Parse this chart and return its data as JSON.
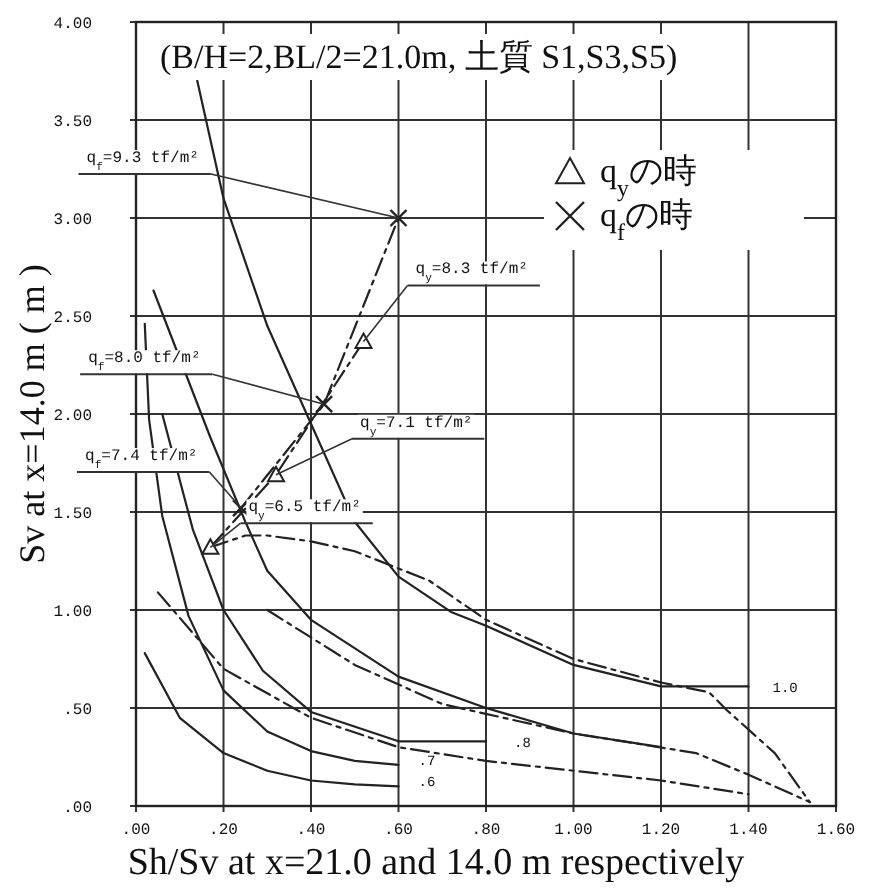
{
  "chart_data": {
    "type": "line",
    "title": "(B/H=2,BL/2=21.0m, 土質 S1,S3,S5)",
    "xlabel": "Sh/Sv at x=21.0 and 14.0 m respectively",
    "ylabel": "Sv at x=14.0 m ( m )",
    "xlim": [
      0,
      1.6
    ],
    "ylim": [
      0,
      4
    ],
    "xticks": [
      {
        "value": 0,
        "label": ".00"
      },
      {
        "value": 0.2,
        "label": ".20"
      },
      {
        "value": 0.4,
        "label": ".40"
      },
      {
        "value": 0.6,
        "label": ".60"
      },
      {
        "value": 0.8,
        "label": ".80"
      },
      {
        "value": 1.0,
        "label": "1.00"
      },
      {
        "value": 1.2,
        "label": "1.20"
      },
      {
        "value": 1.4,
        "label": "1.40"
      },
      {
        "value": 1.6,
        "label": "1.60"
      }
    ],
    "yticks": [
      {
        "value": 0,
        "label": ".00"
      },
      {
        "value": 0.5,
        "label": ".50"
      },
      {
        "value": 1.0,
        "label": "1.00"
      },
      {
        "value": 1.5,
        "label": "1.50"
      },
      {
        "value": 2.0,
        "label": "2.00"
      },
      {
        "value": 2.5,
        "label": "2.50"
      },
      {
        "value": 3.0,
        "label": "3.00"
      },
      {
        "value": 3.5,
        "label": "3.50"
      },
      {
        "value": 4.0,
        "label": "4.00"
      }
    ],
    "grid": true,
    "legend": "top right",
    "series": [
      {
        "color": "#222222",
        "line_style": "solid",
        "x": [
          0.02,
          0.1,
          0.2,
          0.3,
          0.4,
          0.5,
          0.6
        ],
        "values": [
          0.78,
          0.45,
          0.27,
          0.18,
          0.13,
          0.11,
          0.1
        ]
      },
      {
        "color": "#222222",
        "line_style": "solid",
        "x": [
          0.02,
          0.03,
          0.06,
          0.12,
          0.2,
          0.3,
          0.4,
          0.5,
          0.6
        ],
        "values": [
          2.46,
          1.97,
          1.48,
          0.97,
          0.59,
          0.38,
          0.28,
          0.23,
          0.21
        ]
      },
      {
        "color": "#222222",
        "line_style": "solid",
        "x": [
          0.06,
          0.13,
          0.2,
          0.29,
          0.4,
          0.6,
          0.8
        ],
        "values": [
          2.0,
          1.41,
          1.0,
          0.69,
          0.48,
          0.33,
          0.33
        ]
      },
      {
        "color": "#222222",
        "line_style": "solid",
        "x": [
          0.04,
          0.17,
          0.25,
          0.3,
          0.4,
          0.6,
          0.8,
          1.0,
          1.2
        ],
        "values": [
          2.63,
          1.88,
          1.45,
          1.2,
          0.95,
          0.66,
          0.5,
          0.37,
          0.3
        ]
      },
      {
        "color": "#222222",
        "line_style": "solid",
        "x": [
          0.14,
          0.2,
          0.3,
          0.4,
          0.5,
          0.6,
          0.72,
          0.8,
          1.0,
          1.2,
          1.4
        ],
        "values": [
          3.7,
          3.1,
          2.45,
          1.95,
          1.45,
          1.17,
          0.99,
          0.92,
          0.72,
          0.61,
          0.61
        ]
      },
      {
        "color": "#222222",
        "line_style": "dashed",
        "x": [
          0.17,
          0.25,
          0.3,
          0.4,
          0.5,
          0.67,
          0.8,
          1.0,
          1.2,
          1.31,
          1.35,
          1.46,
          1.54
        ],
        "values": [
          1.32,
          1.38,
          1.38,
          1.35,
          1.3,
          1.15,
          0.95,
          0.75,
          0.63,
          0.58,
          0.49,
          0.27,
          0.02
        ]
      },
      {
        "color": "#222222",
        "line_style": "dashed",
        "x": [
          0.05,
          0.2,
          0.4,
          0.6,
          0.8,
          1.0,
          1.2,
          1.4
        ],
        "values": [
          1.09,
          0.7,
          0.45,
          0.3,
          0.23,
          0.18,
          0.13,
          0.06
        ]
      },
      {
        "color": "#222222",
        "line_style": "dashed",
        "x": [
          0.3,
          0.5,
          0.7,
          0.88,
          1.0,
          1.28,
          1.4,
          1.54
        ],
        "values": [
          1.0,
          0.72,
          0.52,
          0.43,
          0.37,
          0.27,
          0.16,
          0.02
        ]
      },
      {
        "name": "q$_{y}$の時",
        "marker": "triangle",
        "color": "#222222",
        "line_style": "dashed",
        "x": [
          0.17,
          0.32,
          0.52
        ],
        "values": [
          1.32,
          1.69,
          2.37
        ]
      },
      {
        "name": "q$_{f}$の時",
        "marker": "cross",
        "color": "#222222",
        "line_style": "dashed",
        "x": [
          0.24,
          0.43,
          0.6
        ],
        "values": [
          1.52,
          2.05,
          3.0
        ]
      }
    ],
    "annotations": [
      {
        "text": "q$_{f}$=9.3 tf/m²",
        "x": 0.6,
        "y": 3.0
      },
      {
        "text": "q$_{y}$=8.3 tf/m²",
        "x": 0.52,
        "y": 2.37
      },
      {
        "text": "q$_{f}$=8.0 tf/m²",
        "x": 0.43,
        "y": 2.05
      },
      {
        "text": "q$_{y}$=7.1 tf/m²",
        "x": 0.32,
        "y": 1.69
      },
      {
        "text": "q$_{f}$=7.4 tf/m²",
        "x": 0.24,
        "y": 1.52
      },
      {
        "text": "q$_{y}$=6.5 tf/m²",
        "x": 0.17,
        "y": 1.32
      },
      {
        "text": ".6",
        "x": 0.6,
        "y": 0.1
      },
      {
        "text": ".7",
        "x": 0.6,
        "y": 0.21
      },
      {
        "text": ".8",
        "x": 0.8,
        "y": 0.33
      },
      {
        "text": "1.0",
        "x": 1.4,
        "y": 0.61
      }
    ]
  }
}
